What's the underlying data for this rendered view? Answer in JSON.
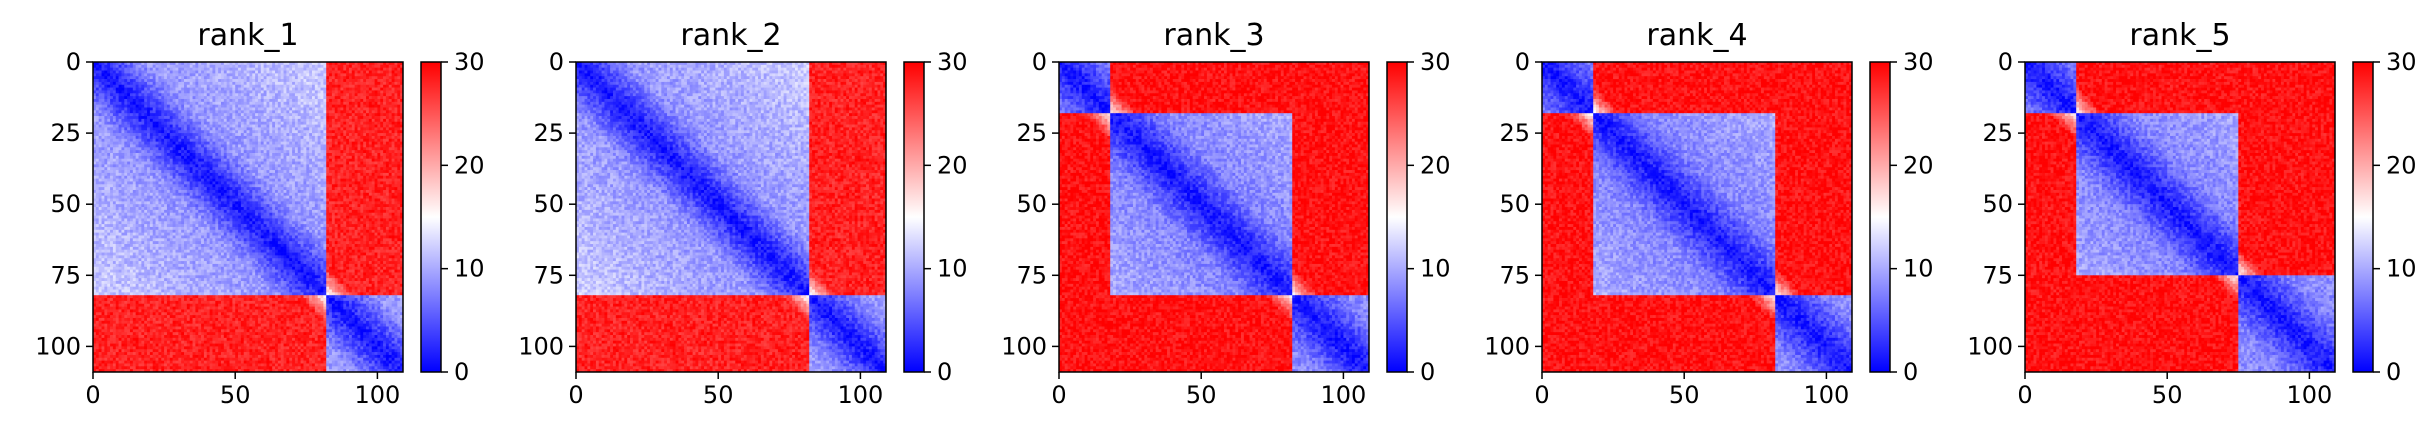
{
  "chart_data": [
    {
      "type": "heatmap",
      "title": "rank_1",
      "size": 109,
      "xlim": [
        0,
        109
      ],
      "ylim": [
        109,
        0
      ],
      "x_ticks": [
        0,
        50,
        100
      ],
      "y_ticks": [
        0,
        25,
        50,
        75,
        100
      ],
      "colorbar": {
        "min": 0,
        "max": 30,
        "center": 15,
        "ticks": [
          0,
          10,
          20,
          30
        ],
        "colors": [
          "#0000ff",
          "#ffffff",
          "#ff0000"
        ]
      },
      "domains": [
        [
          0,
          82
        ],
        [
          82,
          109
        ]
      ],
      "intra_value": 8,
      "inter_value": 28,
      "diagonal_value": 1
    },
    {
      "type": "heatmap",
      "title": "rank_2",
      "size": 109,
      "xlim": [
        0,
        109
      ],
      "ylim": [
        109,
        0
      ],
      "x_ticks": [
        0,
        50,
        100
      ],
      "y_ticks": [
        0,
        25,
        50,
        75,
        100
      ],
      "colorbar": {
        "min": 0,
        "max": 30,
        "center": 15,
        "ticks": [
          0,
          10,
          20,
          30
        ],
        "colors": [
          "#0000ff",
          "#ffffff",
          "#ff0000"
        ]
      },
      "domains": [
        [
          0,
          82
        ],
        [
          82,
          109
        ]
      ],
      "intra_value": 8,
      "inter_value": 28,
      "diagonal_value": 1
    },
    {
      "type": "heatmap",
      "title": "rank_3",
      "size": 109,
      "xlim": [
        0,
        109
      ],
      "ylim": [
        109,
        0
      ],
      "x_ticks": [
        0,
        50,
        100
      ],
      "y_ticks": [
        0,
        25,
        50,
        75,
        100
      ],
      "colorbar": {
        "min": 0,
        "max": 30,
        "center": 15,
        "ticks": [
          0,
          10,
          20,
          30
        ],
        "colors": [
          "#0000ff",
          "#ffffff",
          "#ff0000"
        ]
      },
      "domains": [
        [
          0,
          18
        ],
        [
          18,
          82
        ],
        [
          82,
          109
        ]
      ],
      "intra_value": 7,
      "inter_value": 29,
      "diagonal_value": 1
    },
    {
      "type": "heatmap",
      "title": "rank_4",
      "size": 109,
      "xlim": [
        0,
        109
      ],
      "ylim": [
        109,
        0
      ],
      "x_ticks": [
        0,
        50,
        100
      ],
      "y_ticks": [
        0,
        25,
        50,
        75,
        100
      ],
      "colorbar": {
        "min": 0,
        "max": 30,
        "center": 15,
        "ticks": [
          0,
          10,
          20,
          30
        ],
        "colors": [
          "#0000ff",
          "#ffffff",
          "#ff0000"
        ]
      },
      "domains": [
        [
          0,
          18
        ],
        [
          18,
          82
        ],
        [
          82,
          109
        ]
      ],
      "intra_value": 7,
      "inter_value": 29,
      "diagonal_value": 1
    },
    {
      "type": "heatmap",
      "title": "rank_5",
      "size": 109,
      "xlim": [
        0,
        109
      ],
      "ylim": [
        109,
        0
      ],
      "x_ticks": [
        0,
        50,
        100
      ],
      "y_ticks": [
        0,
        25,
        50,
        75,
        100
      ],
      "colorbar": {
        "min": 0,
        "max": 30,
        "center": 15,
        "ticks": [
          0,
          10,
          20,
          30
        ],
        "colors": [
          "#0000ff",
          "#ffffff",
          "#ff0000"
        ]
      },
      "domains": [
        [
          0,
          18
        ],
        [
          18,
          75
        ],
        [
          75,
          109
        ]
      ],
      "intra_value": 7,
      "inter_value": 29,
      "diagonal_value": 1
    }
  ]
}
